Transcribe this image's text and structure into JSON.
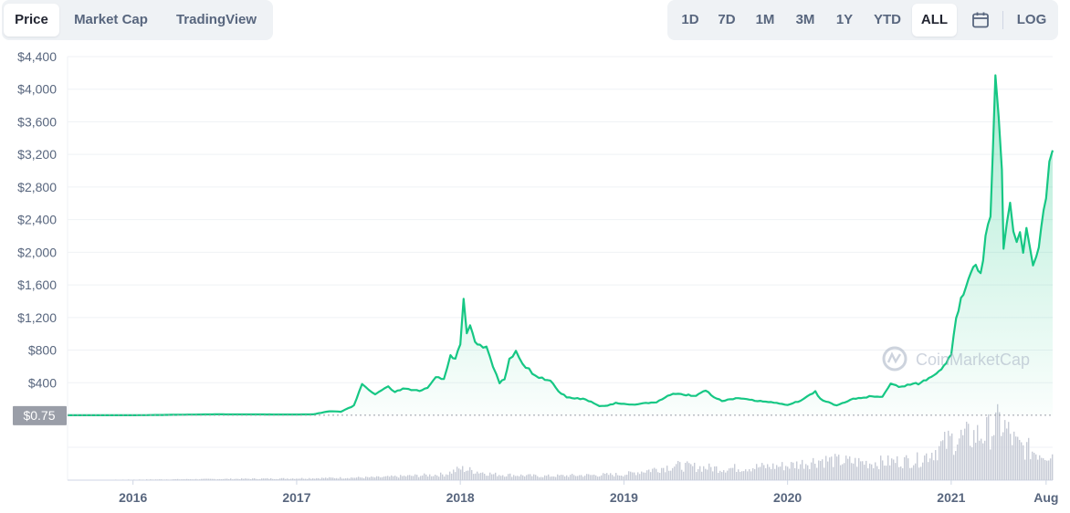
{
  "tabs": {
    "items": [
      {
        "label": "Price",
        "active": true
      },
      {
        "label": "Market Cap",
        "active": false
      },
      {
        "label": "TradingView",
        "active": false
      }
    ]
  },
  "ranges": {
    "items": [
      {
        "label": "1D",
        "active": false
      },
      {
        "label": "7D",
        "active": false
      },
      {
        "label": "1M",
        "active": false
      },
      {
        "label": "3M",
        "active": false
      },
      {
        "label": "1Y",
        "active": false
      },
      {
        "label": "YTD",
        "active": false
      },
      {
        "label": "ALL",
        "active": true
      }
    ],
    "calendar_icon": "calendar-icon",
    "log_label": "LOG"
  },
  "watermark": "CoinMarketCap",
  "colors": {
    "line": "#16c784",
    "fill_top": "#16c784",
    "grid": "#eff2f5",
    "axis_text": "#58667e",
    "baseline_badge": "#9a9ea8",
    "volume": "#c7cbd6",
    "tab_bg": "#eff2f5"
  },
  "chart_data": {
    "type": "area",
    "yticks": [
      "$4,400",
      "$4,000",
      "$3,600",
      "$3,200",
      "$2,800",
      "$2,400",
      "$2,000",
      "$1,600",
      "$1,200",
      "$800",
      "$400"
    ],
    "ytick_values": [
      4400,
      4000,
      3600,
      3200,
      2800,
      2400,
      2000,
      1600,
      1200,
      800,
      400
    ],
    "ylim": [
      0,
      4400
    ],
    "xticks": [
      "2016",
      "2017",
      "2018",
      "2019",
      "2020",
      "2021",
      "Aug"
    ],
    "xtick_values": [
      2016.0,
      2017.0,
      2018.0,
      2019.0,
      2020.0,
      2021.0,
      2021.58
    ],
    "xlim": [
      2015.6,
      2021.62
    ],
    "baseline_label": "$0.75",
    "baseline_value": 0.75,
    "series": [
      {
        "x": [
          2015.6,
          2016.0,
          2016.5,
          2017.0,
          2017.1,
          2017.2,
          2017.27,
          2017.35,
          2017.4,
          2017.44,
          2017.48,
          2017.52,
          2017.56,
          2017.6,
          2017.65,
          2017.7,
          2017.75,
          2017.8,
          2017.85,
          2017.9,
          2017.94,
          2017.97,
          2018.0,
          2018.02,
          2018.04,
          2018.06,
          2018.09,
          2018.12,
          2018.16,
          2018.2,
          2018.24,
          2018.27,
          2018.3,
          2018.34,
          2018.38,
          2018.42,
          2018.46,
          2018.5,
          2018.55,
          2018.6,
          2018.65,
          2018.7,
          2018.75,
          2018.8,
          2018.85,
          2018.9,
          2018.95,
          2019.0,
          2019.05,
          2019.1,
          2019.2,
          2019.3,
          2019.38,
          2019.44,
          2019.5,
          2019.55,
          2019.6,
          2019.7,
          2019.8,
          2019.9,
          2020.0,
          2020.08,
          2020.12,
          2020.17,
          2020.2,
          2020.3,
          2020.4,
          2020.5,
          2020.58,
          2020.63,
          2020.68,
          2020.75,
          2020.8,
          2020.88,
          2020.94,
          2021.0,
          2021.03,
          2021.06,
          2021.09,
          2021.12,
          2021.15,
          2021.18,
          2021.21,
          2021.24,
          2021.27,
          2021.29,
          2021.31,
          2021.32,
          2021.34,
          2021.36,
          2021.38,
          2021.4,
          2021.42,
          2021.44,
          2021.46,
          2021.48,
          2021.5,
          2021.52,
          2021.55,
          2021.58,
          2021.6,
          2021.62
        ],
        "values": [
          1,
          1,
          12,
          10,
          12,
          50,
          45,
          120,
          390,
          320,
          260,
          300,
          350,
          280,
          330,
          310,
          300,
          330,
          470,
          440,
          720,
          700,
          860,
          1390,
          1000,
          1100,
          880,
          860,
          820,
          600,
          400,
          450,
          680,
          800,
          620,
          560,
          480,
          460,
          420,
          300,
          220,
          210,
          200,
          170,
          110,
          120,
          150,
          140,
          130,
          145,
          160,
          270,
          250,
          240,
          310,
          220,
          180,
          210,
          180,
          160,
          130,
          180,
          230,
          290,
          200,
          120,
          200,
          230,
          230,
          390,
          350,
          380,
          390,
          470,
          580,
          730,
          1200,
          1400,
          1600,
          1800,
          1900,
          1700,
          2200,
          2400,
          4150,
          3600,
          3000,
          2000,
          2400,
          2600,
          2300,
          2100,
          2200,
          1950,
          2300,
          2100,
          1800,
          1900,
          2300,
          2700,
          3100,
          3250
        ]
      }
    ],
    "volume": {
      "x": [
        2015.6,
        2017.0,
        2017.5,
        2017.9,
        2018.0,
        2018.2,
        2018.5,
        2019.0,
        2019.3,
        2019.6,
        2020.0,
        2020.2,
        2020.5,
        2020.8,
        2021.0,
        2021.1,
        2021.2,
        2021.3,
        2021.4,
        2021.5,
        2021.62
      ],
      "values": [
        0.0,
        0.03,
        0.05,
        0.1,
        0.2,
        0.1,
        0.07,
        0.1,
        0.25,
        0.2,
        0.25,
        0.35,
        0.3,
        0.35,
        0.7,
        0.75,
        0.8,
        1.0,
        0.6,
        0.5,
        0.45
      ],
      "max": 1.0
    }
  }
}
